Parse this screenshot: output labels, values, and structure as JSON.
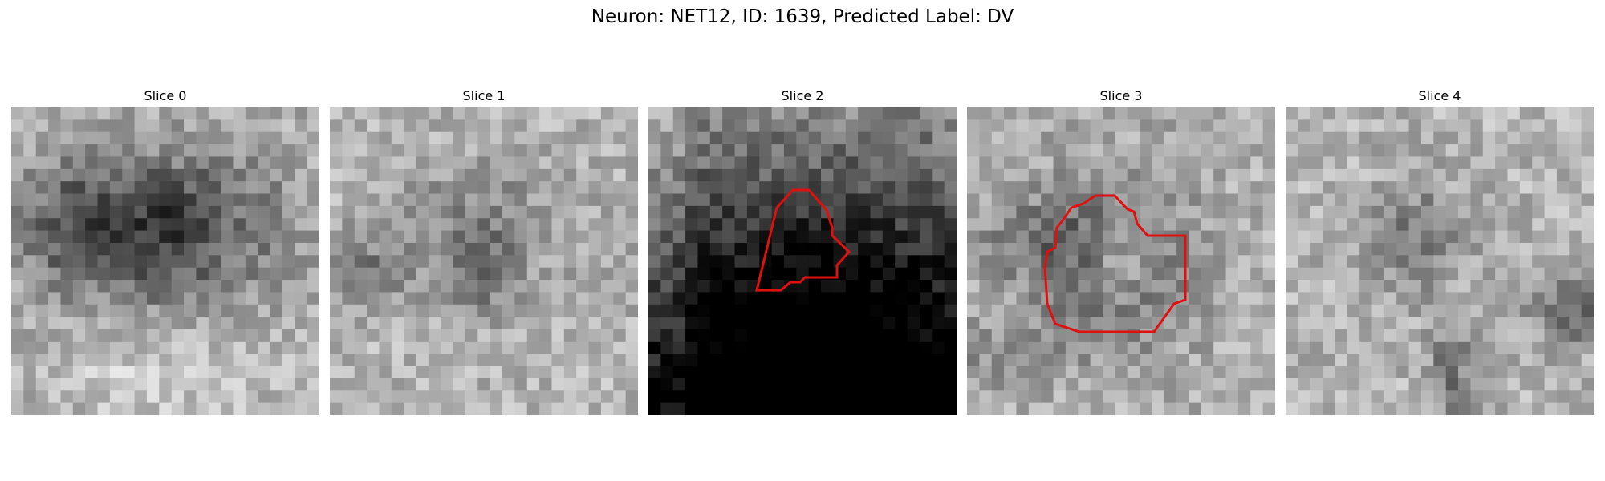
{
  "figure": {
    "title": "Neuron: NET12, ID: 1639, Predicted Label: DV"
  },
  "panels": [
    {
      "title": "Slice 0",
      "has_contour": false,
      "pattern": "dark-blob-center"
    },
    {
      "title": "Slice 1",
      "has_contour": false,
      "pattern": "light-rings"
    },
    {
      "title": "Slice 2",
      "has_contour": true,
      "pattern": "dark-gradient-bottom"
    },
    {
      "title": "Slice 3",
      "has_contour": true,
      "pattern": "ring-center"
    },
    {
      "title": "Slice 4",
      "has_contour": false,
      "pattern": "light-noisy"
    }
  ],
  "colors": {
    "contour": "#e01010",
    "background": "#ffffff"
  }
}
